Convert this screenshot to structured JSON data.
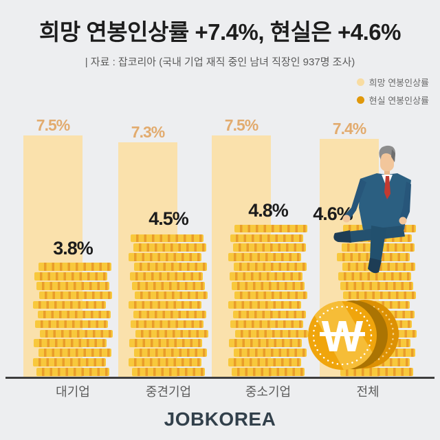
{
  "header": {
    "title": "희망 연봉인상률 +7.4%, 현실은 +4.6%",
    "source": "| 자료 : 잡코리아 (국내 기업 재직 중인 남녀 직장인  937명 조사)"
  },
  "legend": {
    "items": [
      {
        "label": "희망 연봉인상률",
        "color": "#f8dca2"
      },
      {
        "label": "현실 연봉인상률",
        "color": "#e0980b"
      }
    ]
  },
  "chart_data": {
    "type": "bar",
    "categories": [
      "대기업",
      "중견기업",
      "중소기업",
      "전체"
    ],
    "series": [
      {
        "name": "희망 연봉인상률",
        "values": [
          7.5,
          7.3,
          7.5,
          7.4
        ],
        "color": "#fae1ac",
        "style": "solid-bar"
      },
      {
        "name": "현실 연봉인상률",
        "values": [
          3.8,
          4.5,
          4.8,
          4.6
        ],
        "color": "#f2b21c",
        "style": "coin-stack"
      }
    ],
    "unit": "%",
    "ylim": [
      0,
      8
    ],
    "grid": false,
    "legend_position": "top-right",
    "value_labels": true
  },
  "decorations": {
    "won_coin_symbol": "W",
    "man_illustration": "businessman-sitting-on-coin-stack"
  },
  "footer": {
    "logo": "JOBKOREA"
  }
}
